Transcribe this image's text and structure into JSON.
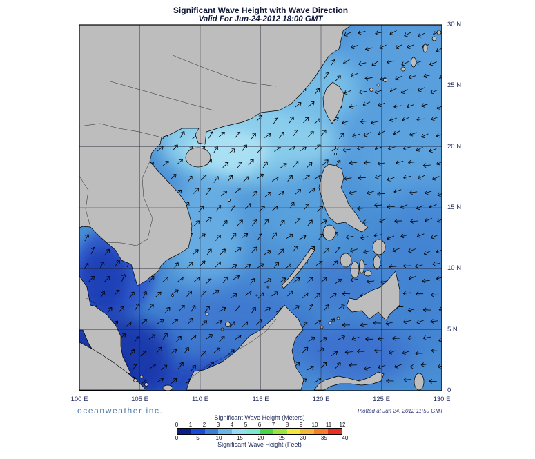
{
  "title": "Significant Wave Height with Wave Direction",
  "subtitle": "Valid For Jun-24-2012 18:00 GMT",
  "footer": {
    "brand": "oceanweather inc.",
    "plotted": "Plotted at Jun 24, 2012 11:50 GMT"
  },
  "axes": {
    "x_ticks": [
      "100 E",
      "105 E",
      "110 E",
      "115 E",
      "120 E",
      "125 E",
      "130 E"
    ],
    "x_lons": [
      100,
      105,
      110,
      115,
      120,
      125,
      130
    ],
    "y_ticks": [
      "0",
      "5 N",
      "10 N",
      "15 N",
      "20 N",
      "25 N",
      "30 N"
    ],
    "y_lats": [
      0,
      5,
      10,
      15,
      20,
      25,
      30
    ]
  },
  "legend": {
    "meters_label": "Significant Wave Height (Meters)",
    "meters_ticks": [
      0,
      1,
      2,
      3,
      4,
      5,
      6,
      7,
      8,
      9,
      10,
      11,
      12
    ],
    "feet_label": "Significant Wave Height (Feet)",
    "feet_ticks": [
      0,
      5,
      10,
      15,
      20,
      25,
      30,
      35,
      40
    ],
    "colors": [
      "#071e8c",
      "#1b49d6",
      "#3c7fd6",
      "#66b6e8",
      "#97dbf2",
      "#7ce8d4",
      "#48d648",
      "#9fe43c",
      "#f2ea3a",
      "#f6b832",
      "#f57f26",
      "#ee2c20"
    ]
  },
  "chart_data": {
    "type": "heatmap",
    "title": "Significant Wave Height with Wave Direction",
    "valid_time": "Jun-24-2012 18:00 GMT",
    "region": {
      "lon_range_deg_e": [
        100,
        130
      ],
      "lat_range_deg_n": [
        0,
        30
      ]
    },
    "scale_meters": {
      "min": 0,
      "max": 12,
      "step": 1
    },
    "scale_feet": {
      "min": 0,
      "max": 40,
      "step": 5
    },
    "overlay": "wave-direction-arrows",
    "grid_spacing_deg": 5
  }
}
